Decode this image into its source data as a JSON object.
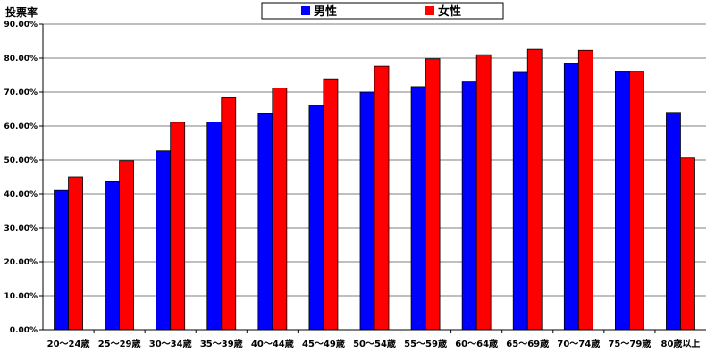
{
  "chart_data": {
    "type": "bar",
    "title": "",
    "ylabel": "投票率",
    "xlabel": "",
    "ylim": [
      0,
      90
    ],
    "yticks": [
      0,
      10,
      20,
      30,
      40,
      50,
      60,
      70,
      80,
      90
    ],
    "ytick_labels": [
      "0.00%",
      "10.00%",
      "20.00%",
      "30.00%",
      "40.00%",
      "50.00%",
      "60.00%",
      "70.00%",
      "80.00%",
      "90.00%"
    ],
    "grid": true,
    "legend_position": "top",
    "categories": [
      "20〜24歳",
      "25〜29歳",
      "30〜34歳",
      "35〜39歳",
      "40〜44歳",
      "45〜49歳",
      "50〜54歳",
      "55〜59歳",
      "60〜64歳",
      "65〜69歳",
      "70〜74歳",
      "75〜79歳",
      "80歳以上"
    ],
    "series": [
      {
        "name": "男性",
        "color": "#0000ff",
        "values": [
          41.0,
          43.6,
          52.7,
          61.2,
          63.6,
          66.1,
          70.0,
          71.6,
          73.0,
          75.8,
          78.3,
          76.1,
          64.0
        ]
      },
      {
        "name": "女性",
        "color": "#ff0000",
        "values": [
          45.0,
          49.8,
          61.1,
          68.3,
          71.2,
          73.9,
          77.6,
          79.8,
          81.0,
          82.6,
          82.3,
          76.1,
          50.6
        ]
      }
    ]
  }
}
